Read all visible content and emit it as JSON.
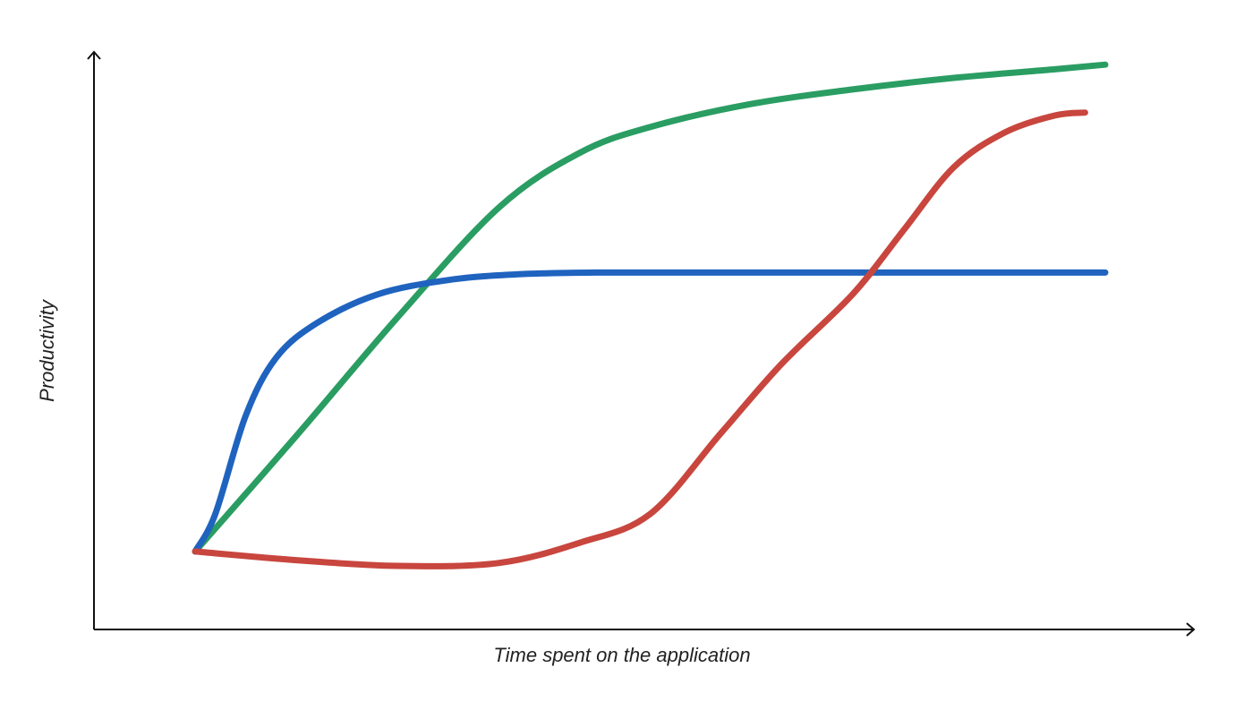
{
  "chart_data": {
    "type": "line",
    "title": "",
    "xlabel": "Time spent on the application",
    "ylabel": "Productivity",
    "xlim": [
      0,
      10
    ],
    "ylim": [
      0,
      10
    ],
    "grid": false,
    "legend": "none",
    "axis_color": "#111111",
    "series": [
      {
        "color": "#2a9d63",
        "x": [
          1.0,
          2.0,
          3.0,
          4.0,
          4.8,
          5.5,
          6.5,
          7.5,
          8.5,
          9.5,
          10.0
        ],
        "y": [
          1.35,
          3.35,
          5.4,
          7.3,
          8.25,
          8.7,
          9.1,
          9.35,
          9.55,
          9.7,
          9.78
        ]
      },
      {
        "color": "#1f63bf",
        "x": [
          1.0,
          1.2,
          1.5,
          1.8,
          2.2,
          2.8,
          3.5,
          4.2,
          5.0,
          6.0,
          7.0,
          8.0,
          9.0,
          10.0
        ],
        "y": [
          1.35,
          2.0,
          3.7,
          4.7,
          5.3,
          5.8,
          6.05,
          6.15,
          6.18,
          6.18,
          6.18,
          6.18,
          6.18,
          6.18
        ]
      },
      {
        "color": "#c8463e",
        "x": [
          1.0,
          2.0,
          3.0,
          4.0,
          4.8,
          5.5,
          6.2,
          6.8,
          7.5,
          8.0,
          8.5,
          9.0,
          9.5,
          9.8
        ],
        "y": [
          1.35,
          1.2,
          1.1,
          1.15,
          1.5,
          2.0,
          3.4,
          4.6,
          5.8,
          6.9,
          8.0,
          8.6,
          8.9,
          8.95
        ]
      }
    ]
  }
}
